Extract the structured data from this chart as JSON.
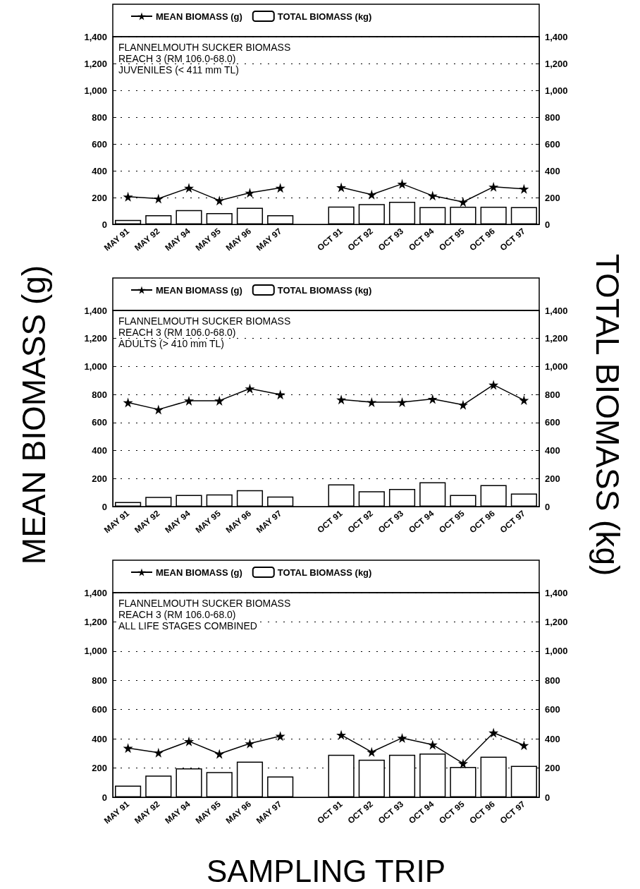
{
  "chart_data": [
    {
      "type": "bar",
      "title": "FLANNELMOUTH SUCKER BIOMASS",
      "subtitle": "REACH 3 (RM 106.0-68.0)",
      "annotations": [
        "JUVENILES (< 411 mm TL)"
      ],
      "categories": [
        "MAY 91",
        "MAY 92",
        "MAY 94",
        "MAY 95",
        "MAY 96",
        "MAY 97",
        null,
        "OCT 91",
        "OCT 92",
        "OCT 93",
        "OCT 94",
        "OCT 95",
        "OCT 96",
        "OCT 97"
      ],
      "series": [
        {
          "name": "MEAN BIOMASS (g)",
          "type": "line",
          "color": "#000000",
          "marker": "star",
          "values": [
            206,
            192,
            272,
            178,
            235,
            272,
            null,
            276,
            222,
            302,
            214,
            167,
            280,
            265
          ]
        },
        {
          "name": "TOTAL BIOMASS (kg)",
          "axis": "y2",
          "color": "#ffffff",
          "values": [
            33,
            69,
            106,
            84,
            124,
            69,
            null,
            133,
            151,
            169,
            129,
            131,
            131,
            129
          ]
        }
      ],
      "ylim": [
        0,
        1400
      ],
      "yticks": [
        0,
        200,
        400,
        600,
        800,
        {
          "value": 1000,
          "label": "1,000"
        },
        {
          "value": 1200,
          "label": "1,200"
        },
        {
          "value": 1400,
          "label": "1,400"
        }
      ],
      "y2lim": [
        0,
        1400
      ],
      "y2ticks": [
        0,
        200,
        400,
        600,
        800,
        {
          "value": 1000,
          "label": "1,000"
        },
        {
          "value": 1200,
          "label": "1,200"
        },
        {
          "value": 1400,
          "label": "1,400"
        }
      ],
      "grid": "y",
      "legend": "top"
    },
    {
      "type": "bar",
      "title": "FLANNELMOUTH SUCKER BIOMASS",
      "subtitle": "REACH 3 (RM 106.0-68.0)",
      "annotations": [
        "ADULTS (> 410 mm TL)"
      ],
      "ylabel": "MEAN BIOMASS (g)",
      "y2label": "TOTAL BIOMASS (kg)",
      "categories": [
        "MAY 91",
        "MAY 92",
        "MAY 94",
        "MAY 95",
        "MAY 96",
        "MAY 97",
        null,
        "OCT 91",
        "OCT 92",
        "OCT 93",
        "OCT 94",
        "OCT 95",
        "OCT 96",
        "OCT 97"
      ],
      "series": [
        {
          "name": "MEAN BIOMASS (g)",
          "type": "line",
          "color": "#000000",
          "marker": "star",
          "values": [
            743,
            693,
            756,
            756,
            842,
            800,
            null,
            764,
            745,
            745,
            768,
            726,
            869,
            760
          ]
        },
        {
          "name": "TOTAL BIOMASS (kg)",
          "axis": "y2",
          "color": "#ffffff",
          "values": [
            33,
            69,
            83,
            87,
            117,
            72,
            null,
            159,
            109,
            126,
            174,
            83,
            154,
            93
          ]
        }
      ],
      "ylim": [
        0,
        1400
      ],
      "yticks": [
        0,
        200,
        400,
        600,
        800,
        {
          "value": 1000,
          "label": "1,000"
        },
        {
          "value": 1200,
          "label": "1,200"
        },
        {
          "value": 1400,
          "label": "1,400"
        }
      ],
      "y2lim": [
        0,
        1400
      ],
      "y2ticks": [
        0,
        200,
        400,
        600,
        800,
        {
          "value": 1000,
          "label": "1,000"
        },
        {
          "value": 1200,
          "label": "1,200"
        },
        {
          "value": 1400,
          "label": "1,400"
        }
      ],
      "grid": "y",
      "legend": "top"
    },
    {
      "type": "bar",
      "title": "FLANNELMOUTH SUCKER BIOMASS",
      "subtitle": "REACH 3 (RM 106.0-68.0)",
      "annotations": [
        "ALL LIFE STAGES COMBINED"
      ],
      "xlabel": "SAMPLING TRIP",
      "categories": [
        "MAY 91",
        "MAY 92",
        "MAY 94",
        "MAY 95",
        "MAY 96",
        "MAY 97",
        null,
        "OCT 91",
        "OCT 92",
        "OCT 93",
        "OCT 94",
        "OCT 95",
        "OCT 96",
        "OCT 97"
      ],
      "series": [
        {
          "name": "MEAN BIOMASS (g)",
          "type": "line",
          "color": "#000000",
          "marker": "star",
          "values": [
            337,
            305,
            383,
            297,
            368,
            419,
            null,
            427,
            310,
            406,
            360,
            232,
            442,
            356
          ]
        },
        {
          "name": "TOTAL BIOMASS (kg)",
          "axis": "y2",
          "color": "#ffffff",
          "values": [
            80,
            149,
            198,
            173,
            244,
            143,
            null,
            291,
            257,
            291,
            299,
            208,
            278,
            215
          ]
        }
      ],
      "ylim": [
        0,
        1400
      ],
      "yticks": [
        0,
        200,
        400,
        600,
        800,
        {
          "value": 1000,
          "label": "1,000"
        },
        {
          "value": 1200,
          "label": "1,200"
        },
        {
          "value": 1400,
          "label": "1,400"
        }
      ],
      "y2lim": [
        0,
        1400
      ],
      "y2ticks": [
        0,
        200,
        400,
        600,
        800,
        {
          "value": 1000,
          "label": "1,000"
        },
        {
          "value": 1200,
          "label": "1,200"
        },
        {
          "value": 1400,
          "label": "1,400"
        }
      ],
      "grid": "y",
      "legend": "top"
    }
  ]
}
